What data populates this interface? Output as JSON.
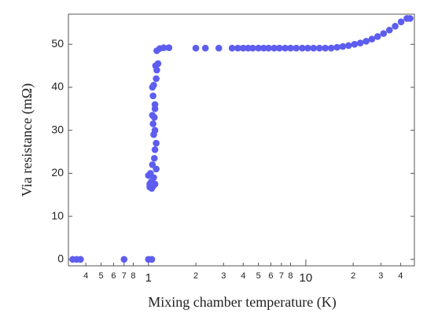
{
  "chart_data": {
    "type": "scatter",
    "log_x": true,
    "xlabel": "Mixing chamber temperature (K)",
    "ylabel": "Via resistance (mΩ)",
    "xlim": [
      0.31,
      49
    ],
    "ylim": [
      -1.5,
      57
    ],
    "xticks": [
      {
        "value": 0.4,
        "label": "4"
      },
      {
        "value": 0.5,
        "label": "5"
      },
      {
        "value": 0.6,
        "label": "6"
      },
      {
        "value": 0.7,
        "label": "7"
      },
      {
        "value": 0.8,
        "label": "8"
      },
      1,
      {
        "value": 2,
        "label": "2"
      },
      {
        "value": 3,
        "label": "3"
      },
      {
        "value": 4,
        "label": "4"
      },
      {
        "value": 5,
        "label": "5"
      },
      {
        "value": 6,
        "label": "6"
      },
      {
        "value": 7,
        "label": "7"
      },
      {
        "value": 8,
        "label": "8"
      },
      10,
      {
        "value": 20,
        "label": "2"
      },
      {
        "value": 30,
        "label": "3"
      },
      {
        "value": 40,
        "label": "4"
      }
    ],
    "yticks": [
      0,
      10,
      20,
      30,
      40,
      50
    ],
    "color": "#5d5df0",
    "x": [
      0.33,
      0.35,
      0.37,
      0.7,
      1.0,
      1.05,
      1.05,
      1.07,
      1.1,
      1.04,
      1.08,
      1.03,
      1.12,
      1.06,
      1.09,
      1.1,
      1.12,
      1.08,
      1.1,
      1.07,
      1.09,
      1.06,
      1.1,
      1.1,
      1.07,
      1.06,
      1.08,
      1.12,
      1.13,
      1.11,
      1.15,
      1.13,
      1.02,
      1.0,
      1.02,
      1.18,
      1.25,
      1.35,
      2.0,
      2.3,
      2.8,
      3.4,
      3.7,
      4.0,
      4.3,
      4.6,
      5.0,
      5.4,
      5.8,
      6.3,
      6.8,
      7.4,
      8,
      8.7,
      9.5,
      10.3,
      11.2,
      12.2,
      13.3,
      14.5,
      15.8,
      17.2,
      18.7,
      20.4,
      22.2,
      24.2,
      26.3,
      28.6,
      31.2,
      34,
      37,
      40.3,
      43.9,
      46
    ],
    "values": [
      0,
      0,
      0,
      0,
      0,
      0,
      16.5,
      17,
      17.5,
      18,
      19,
      20,
      21,
      22,
      23.5,
      25.5,
      27,
      29,
      30,
      31.5,
      33,
      33.5,
      35,
      36,
      38,
      40,
      40.5,
      42,
      44,
      45,
      45.5,
      48.5,
      16.8,
      19.5,
      17.5,
      49,
      49.2,
      49.2,
      49.1,
      49.1,
      49.1,
      49.1,
      49.1,
      49.1,
      49.1,
      49.1,
      49.1,
      49.1,
      49.1,
      49.1,
      49.1,
      49.1,
      49.1,
      49.1,
      49.1,
      49.1,
      49.1,
      49.1,
      49.1,
      49.1,
      49.3,
      49.5,
      49.7,
      50,
      50.3,
      50.7,
      51.2,
      51.8,
      52.5,
      53.3,
      54.2,
      55.2,
      56,
      56
    ]
  }
}
